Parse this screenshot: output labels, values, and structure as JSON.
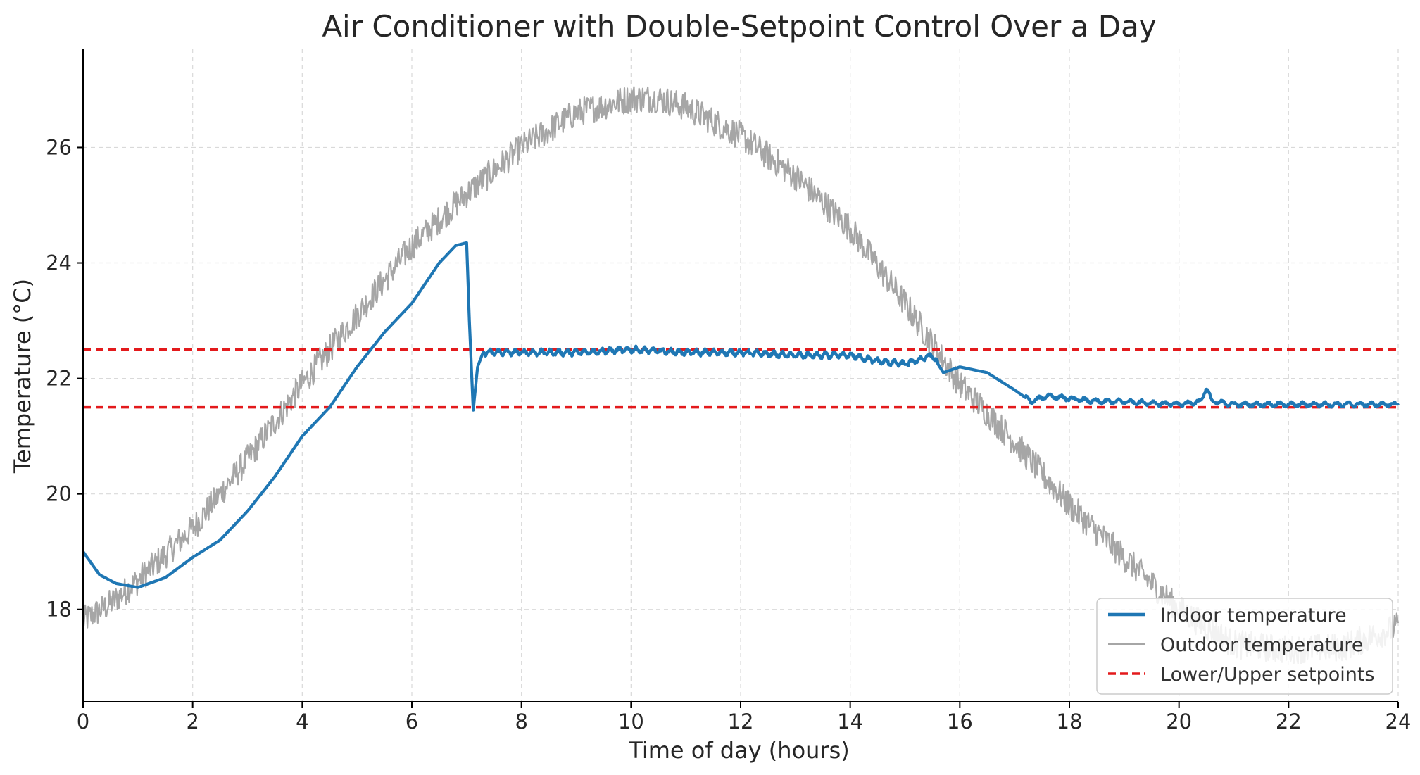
{
  "chart_data": {
    "type": "line",
    "title": "Air Conditioner with Double-Setpoint Control Over a Day",
    "xlabel": "Time of day (hours)",
    "ylabel": "Temperature (°C)",
    "xlim": [
      0,
      24
    ],
    "ylim": [
      16.4,
      27.7
    ],
    "xticks": [
      0,
      2,
      4,
      6,
      8,
      10,
      12,
      14,
      16,
      18,
      20,
      22,
      24
    ],
    "yticks": [
      18,
      20,
      22,
      24,
      26
    ],
    "grid": true,
    "legend_position": "lower-right",
    "series": [
      {
        "name": "Indoor temperature",
        "color": "#1f77b4",
        "style": "solid",
        "x": [
          0,
          0.3,
          0.6,
          1.0,
          1.5,
          2.0,
          2.5,
          3.0,
          3.5,
          4.0,
          4.5,
          5.0,
          5.5,
          6.0,
          6.5,
          6.8,
          7.0,
          7.05,
          7.12,
          7.2,
          7.3,
          8,
          9,
          10,
          11,
          12,
          13,
          14,
          14.5,
          15,
          15.5,
          15.7,
          16,
          16.5,
          17,
          17.3,
          17.6,
          18,
          18.5,
          19,
          20,
          20.4,
          20.5,
          20.6,
          21,
          22,
          23,
          24
        ],
        "y": [
          19.0,
          18.6,
          18.45,
          18.38,
          18.55,
          18.9,
          19.2,
          19.7,
          20.3,
          21.0,
          21.5,
          22.2,
          22.8,
          23.3,
          24.0,
          24.3,
          24.35,
          23.0,
          21.45,
          22.2,
          22.45,
          22.45,
          22.45,
          22.5,
          22.45,
          22.45,
          22.4,
          22.4,
          22.3,
          22.25,
          22.4,
          22.1,
          22.2,
          22.1,
          21.8,
          21.6,
          21.7,
          21.65,
          21.6,
          21.6,
          21.55,
          21.6,
          21.85,
          21.6,
          21.55,
          21.55,
          21.55,
          21.55
        ]
      },
      {
        "name": "Outdoor temperature",
        "color": "#a6a6a6",
        "style": "solid",
        "x": [
          0,
          0.5,
          1,
          2,
          3,
          4,
          5,
          6,
          7,
          8,
          9,
          10,
          10.5,
          11,
          12,
          13,
          14,
          15,
          16,
          17,
          18,
          19,
          20,
          21,
          22,
          23,
          24
        ],
        "y": [
          17.8,
          18.1,
          18.5,
          19.4,
          20.6,
          21.9,
          23.1,
          24.3,
          25.2,
          26.0,
          26.6,
          26.85,
          26.85,
          26.7,
          26.2,
          25.5,
          24.6,
          23.3,
          21.9,
          20.9,
          19.8,
          18.9,
          18.0,
          17.4,
          17.3,
          17.35,
          17.7
        ]
      },
      {
        "name": "Lower/Upper setpoints",
        "color": "#e31a1c",
        "style": "dashed",
        "lower": 21.5,
        "upper": 22.5
      }
    ]
  }
}
